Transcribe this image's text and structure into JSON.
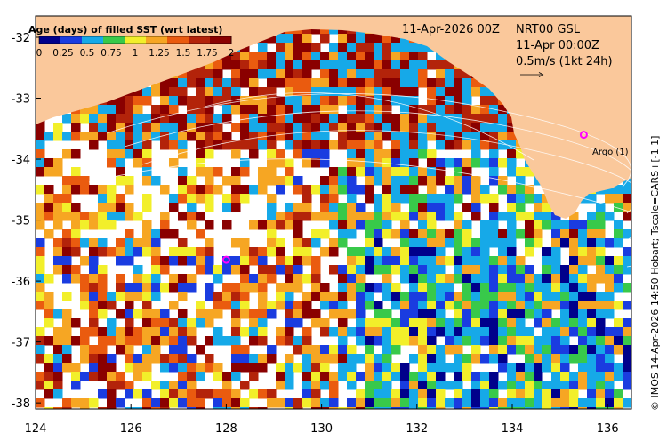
{
  "map": {
    "colorbar_title": "Age (days) of filled SST (wrt latest)",
    "colorbar_ticks": [
      "0",
      "0.25",
      "0.5",
      "0.75",
      "1",
      "1.25",
      "1.5",
      "1.75",
      "2"
    ],
    "colorbar_colors": [
      "#00008b",
      "#1a3ce0",
      "#16a9e8",
      "#38c94a",
      "#f2ef2a",
      "#f6a623",
      "#ea5b0f",
      "#b3230a",
      "#8a0000"
    ],
    "date_label": "11-Apr-2026 00Z",
    "product_label": "NRT00 GSL",
    "time_label": "11-Apr 00:00Z",
    "scale_label": "0.5m/s (1kt 24h)",
    "argo_label": "Argo (1)",
    "credit": "© IMOS 14-Apr-2026 14:50 Hobart; Tscale=CARS+[-1 1]",
    "land_color": "#fac89b",
    "argo_color": "#ff00ff"
  },
  "chart_data": {
    "type": "heatmap",
    "title": "Age (days) of filled SST (wrt latest)",
    "x_ticks": [
      "124",
      "126",
      "128",
      "130",
      "132",
      "134",
      "136"
    ],
    "y_ticks": [
      "-32",
      "-33",
      "-34",
      "-35",
      "-36",
      "-37",
      "-38"
    ],
    "xlim": [
      124,
      136.5
    ],
    "ylim": [
      -38.1,
      -31.65
    ],
    "color_range": [
      0,
      2
    ],
    "argo_floats": [
      {
        "lon": 135.5,
        "lat": -33.6,
        "label": "Argo (1)"
      },
      {
        "lon": 128.0,
        "lat": -35.65,
        "label": ""
      }
    ]
  }
}
